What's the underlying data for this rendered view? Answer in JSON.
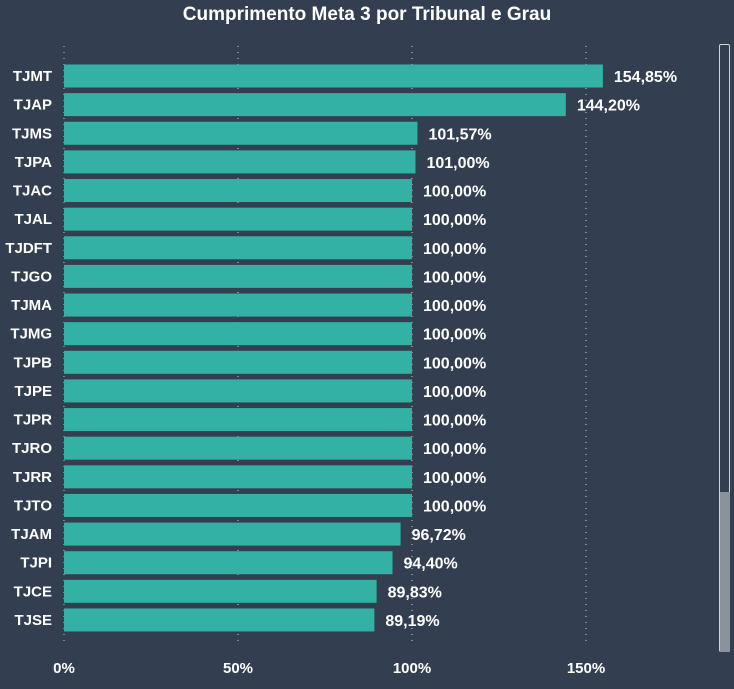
{
  "chart_data": {
    "type": "bar",
    "orientation": "horizontal",
    "title": "Cumprimento Meta 3 por Tribunal e Grau",
    "xlabel": "",
    "ylabel": "",
    "xlim": [
      0,
      160
    ],
    "grid": true,
    "categories": [
      "TJMT",
      "TJAP",
      "TJMS",
      "TJPA",
      "TJAC",
      "TJAL",
      "TJDFT",
      "TJGO",
      "TJMA",
      "TJMG",
      "TJPB",
      "TJPE",
      "TJPR",
      "TJRO",
      "TJRR",
      "TJTO",
      "TJAM",
      "TJPI",
      "TJCE",
      "TJSE"
    ],
    "values": [
      154.85,
      144.2,
      101.57,
      101.0,
      100,
      100,
      100,
      100,
      100,
      100,
      100,
      100,
      100,
      100,
      100,
      100,
      96.72,
      94.4,
      89.83,
      89.19
    ],
    "labels": [
      "154,85%",
      "144,20%",
      "101,57%",
      "101,00%",
      "100,00%",
      "100,00%",
      "100,00%",
      "100,00%",
      "100,00%",
      "100,00%",
      "100,00%",
      "100,00%",
      "100,00%",
      "100,00%",
      "100,00%",
      "100,00%",
      "96,72%",
      "94,40%",
      "89,83%",
      "89,19%"
    ],
    "xticks": [
      0,
      50,
      100,
      150
    ],
    "xtick_labels": [
      "0%",
      "50%",
      "100%",
      "150%"
    ],
    "bar_color": "#33b1a4",
    "background": "#333f50"
  }
}
